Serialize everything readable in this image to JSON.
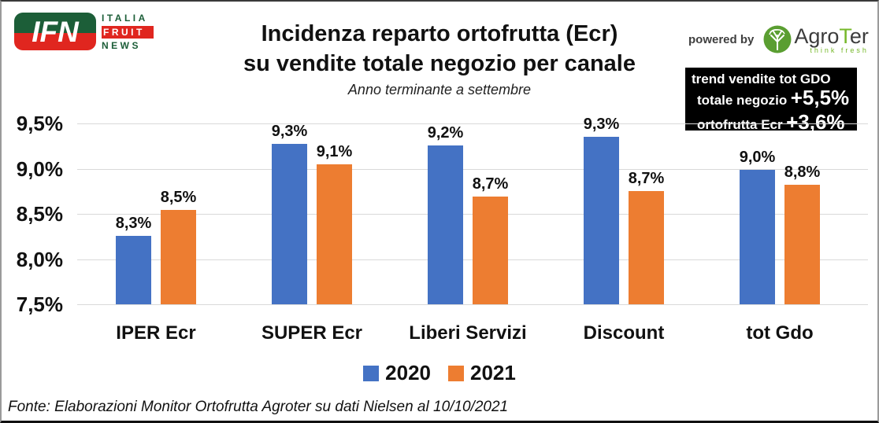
{
  "logo_ifn": {
    "acronym": "IFN",
    "line1": "ITALIA",
    "line2": "FRUIT",
    "line3": "NEWS",
    "green": "#1c5e38",
    "red": "#e0261f"
  },
  "header": {
    "title_line1": "Incidenza reparto ortofrutta (Ecr)",
    "title_line2": "su vendite totale negozio per canale",
    "subtitle": "Anno terminante a settembre"
  },
  "powered_by": {
    "label": "powered by",
    "brand_prefix": "Agro",
    "brand_t": "T",
    "brand_suffix": "er",
    "tagline": "think fresh",
    "green": "#76b82a"
  },
  "info_box": {
    "title": "trend vendite tot GDO",
    "rows": [
      {
        "label": "totale negozio",
        "value": "+5,5%"
      },
      {
        "label": "ortofrutta Ecr",
        "value": "+3,6%"
      }
    ],
    "bg": "#000000",
    "text_color": "#ffffff"
  },
  "chart_data": {
    "type": "bar",
    "title": "Incidenza reparto ortofrutta (Ecr) su vendite totale negozio per canale",
    "subtitle": "Anno terminante a settembre",
    "categories": [
      "IPER Ecr",
      "SUPER Ecr",
      "Liberi Servizi",
      "Discount",
      "tot Gdo"
    ],
    "series": [
      {
        "name": "2020",
        "color": "#4472C4",
        "values": [
          8.3,
          9.3,
          9.2,
          9.3,
          9.0
        ],
        "labels": [
          "8,3%",
          "9,3%",
          "9,2%",
          "9,3%",
          "9,0%"
        ],
        "pixel_estimated_values": [
          8.26,
          9.27,
          9.26,
          9.35,
          8.99
        ]
      },
      {
        "name": "2021",
        "color": "#ED7D31",
        "values": [
          8.5,
          9.1,
          8.7,
          8.7,
          8.8
        ],
        "labels": [
          "8,5%",
          "9,1%",
          "8,7%",
          "8,7%",
          "8,8%"
        ],
        "pixel_estimated_values": [
          8.54,
          9.05,
          8.69,
          8.75,
          8.82
        ]
      }
    ],
    "y_ticks": [
      "9,5%",
      "9,0%",
      "8,5%",
      "8,0%",
      "7,5%"
    ],
    "y_tick_values": [
      9.5,
      9.0,
      8.5,
      8.0,
      7.5
    ],
    "ylim": [
      7.5,
      9.5
    ],
    "grid": true,
    "gridline_color": "#d9d9d9",
    "legend_position": "bottom"
  },
  "footer": {
    "source": "Fonte: Elaborazioni Monitor Ortofrutta Agroter su dati Nielsen al 10/10/2021"
  }
}
